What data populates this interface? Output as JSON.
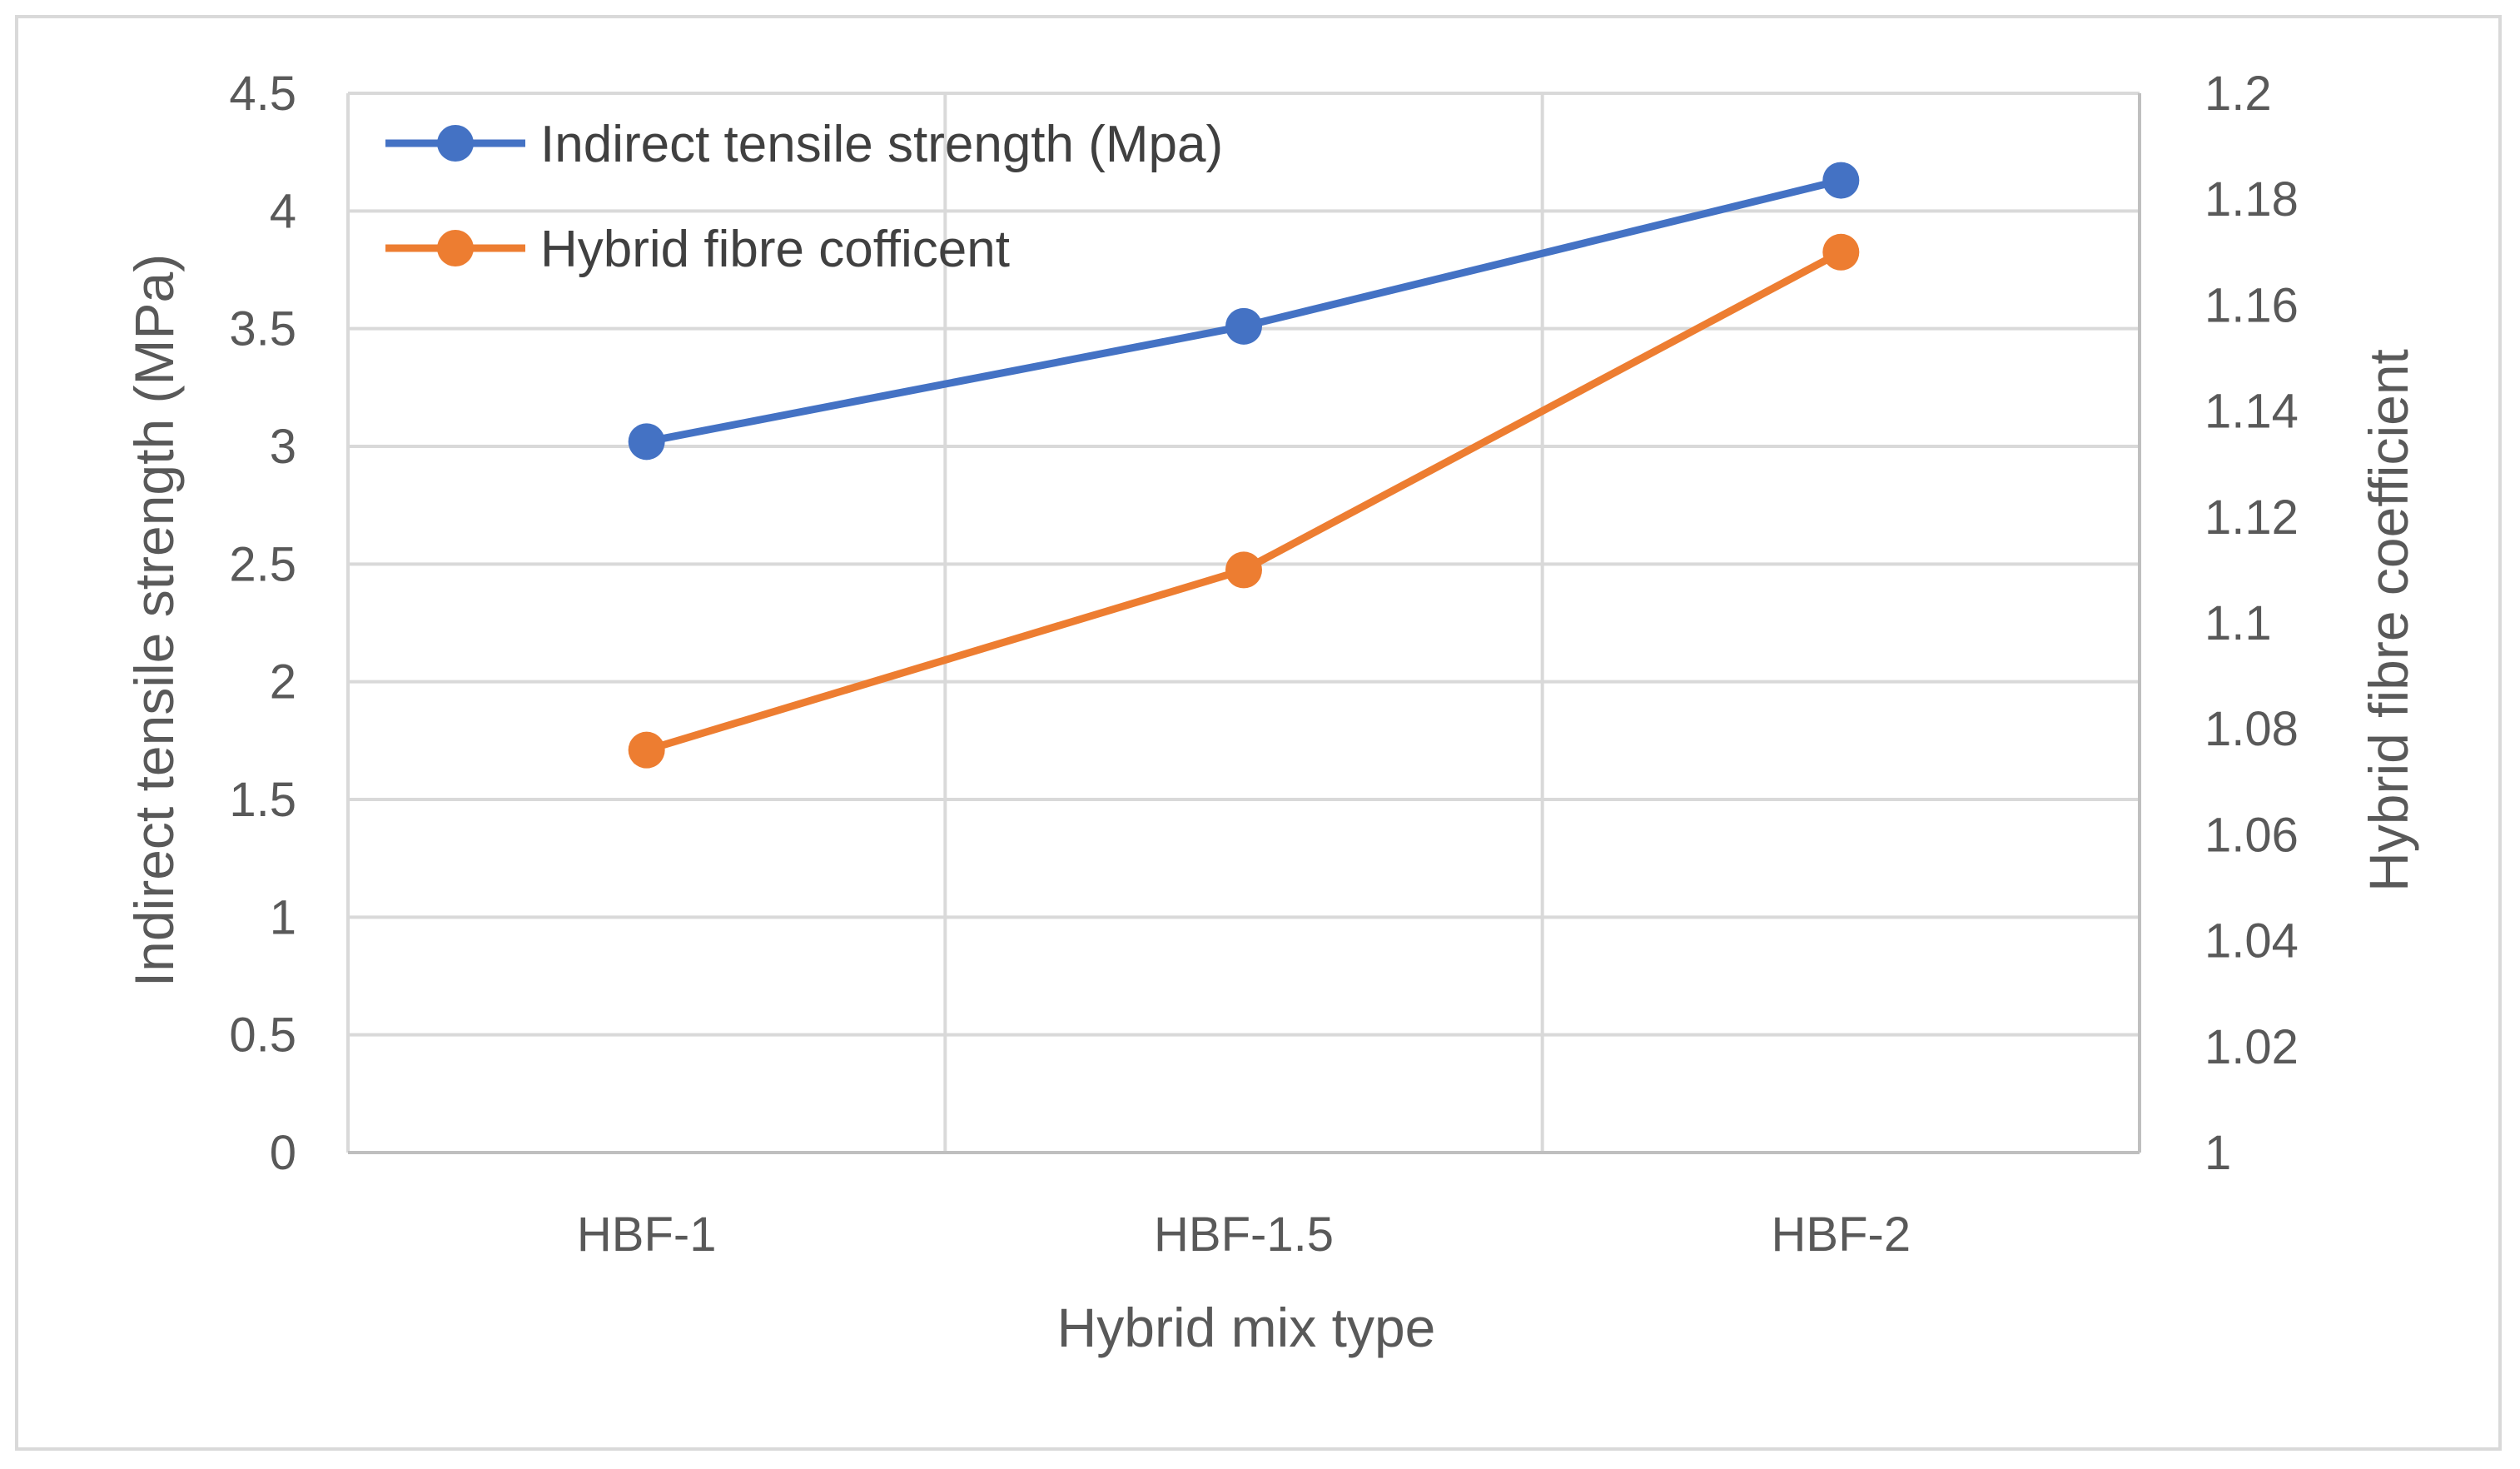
{
  "chart_data": {
    "type": "line",
    "categories": [
      "HBF-1",
      "HBF-1.5",
      "HBF-2"
    ],
    "xlabel": "Hybrid mix type",
    "ylabel": "Indirect tensile strength (MPa)",
    "y2label": "Hybrid fibre coefficient",
    "ylim": [
      0,
      4.5
    ],
    "y2lim": [
      1,
      1.2
    ],
    "yticks": [
      "0",
      "0.5",
      "1",
      "1.5",
      "2",
      "2.5",
      "3",
      "3.5",
      "4",
      "4.5"
    ],
    "y2ticks": [
      "1",
      "1.02",
      "1.04",
      "1.06",
      "1.08",
      "1.1",
      "1.12",
      "1.14",
      "1.16",
      "1.18",
      "1.2"
    ],
    "grid": true,
    "legend_position": "top-left",
    "series": [
      {
        "name": "Indirect tensile strength (Mpa)",
        "axis": "left",
        "color": "#4472c4",
        "values": [
          3.02,
          3.51,
          4.13
        ]
      },
      {
        "name": "Hybrid fibre cofficent",
        "axis": "right",
        "color": "#ed7d31",
        "values": [
          1.076,
          1.11,
          1.17
        ]
      }
    ]
  }
}
